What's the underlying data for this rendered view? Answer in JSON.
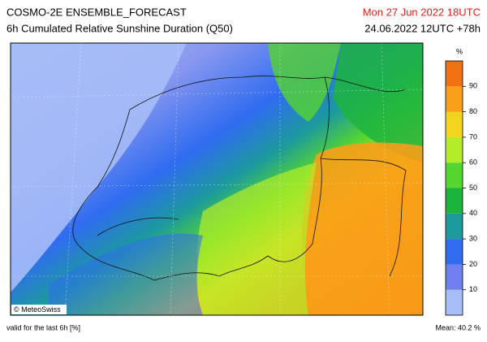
{
  "header": {
    "title": "COSMO-2E ENSEMBLE_FORECAST",
    "subtitle": "6h Cumulated Relative Sunshine Duration (Q50)",
    "date": "Mon 27 Jun 2022 18UTC",
    "run": "24.06.2022 12UTC +78h"
  },
  "legend": {
    "unit": "%",
    "ticks": [
      10,
      20,
      30,
      40,
      50,
      60,
      70,
      80,
      90
    ],
    "colors": [
      "#a6bdf7",
      "#6f80ee",
      "#2f6cf0",
      "#1c9a9c",
      "#1db43e",
      "#55d530",
      "#b4ec2a",
      "#f2d41e",
      "#f89e18",
      "#f07212"
    ]
  },
  "credit": "© MeteoSwiss",
  "footer": {
    "left": "valid for the last 6h [%]",
    "right": "Mean:  40.2 %"
  }
}
